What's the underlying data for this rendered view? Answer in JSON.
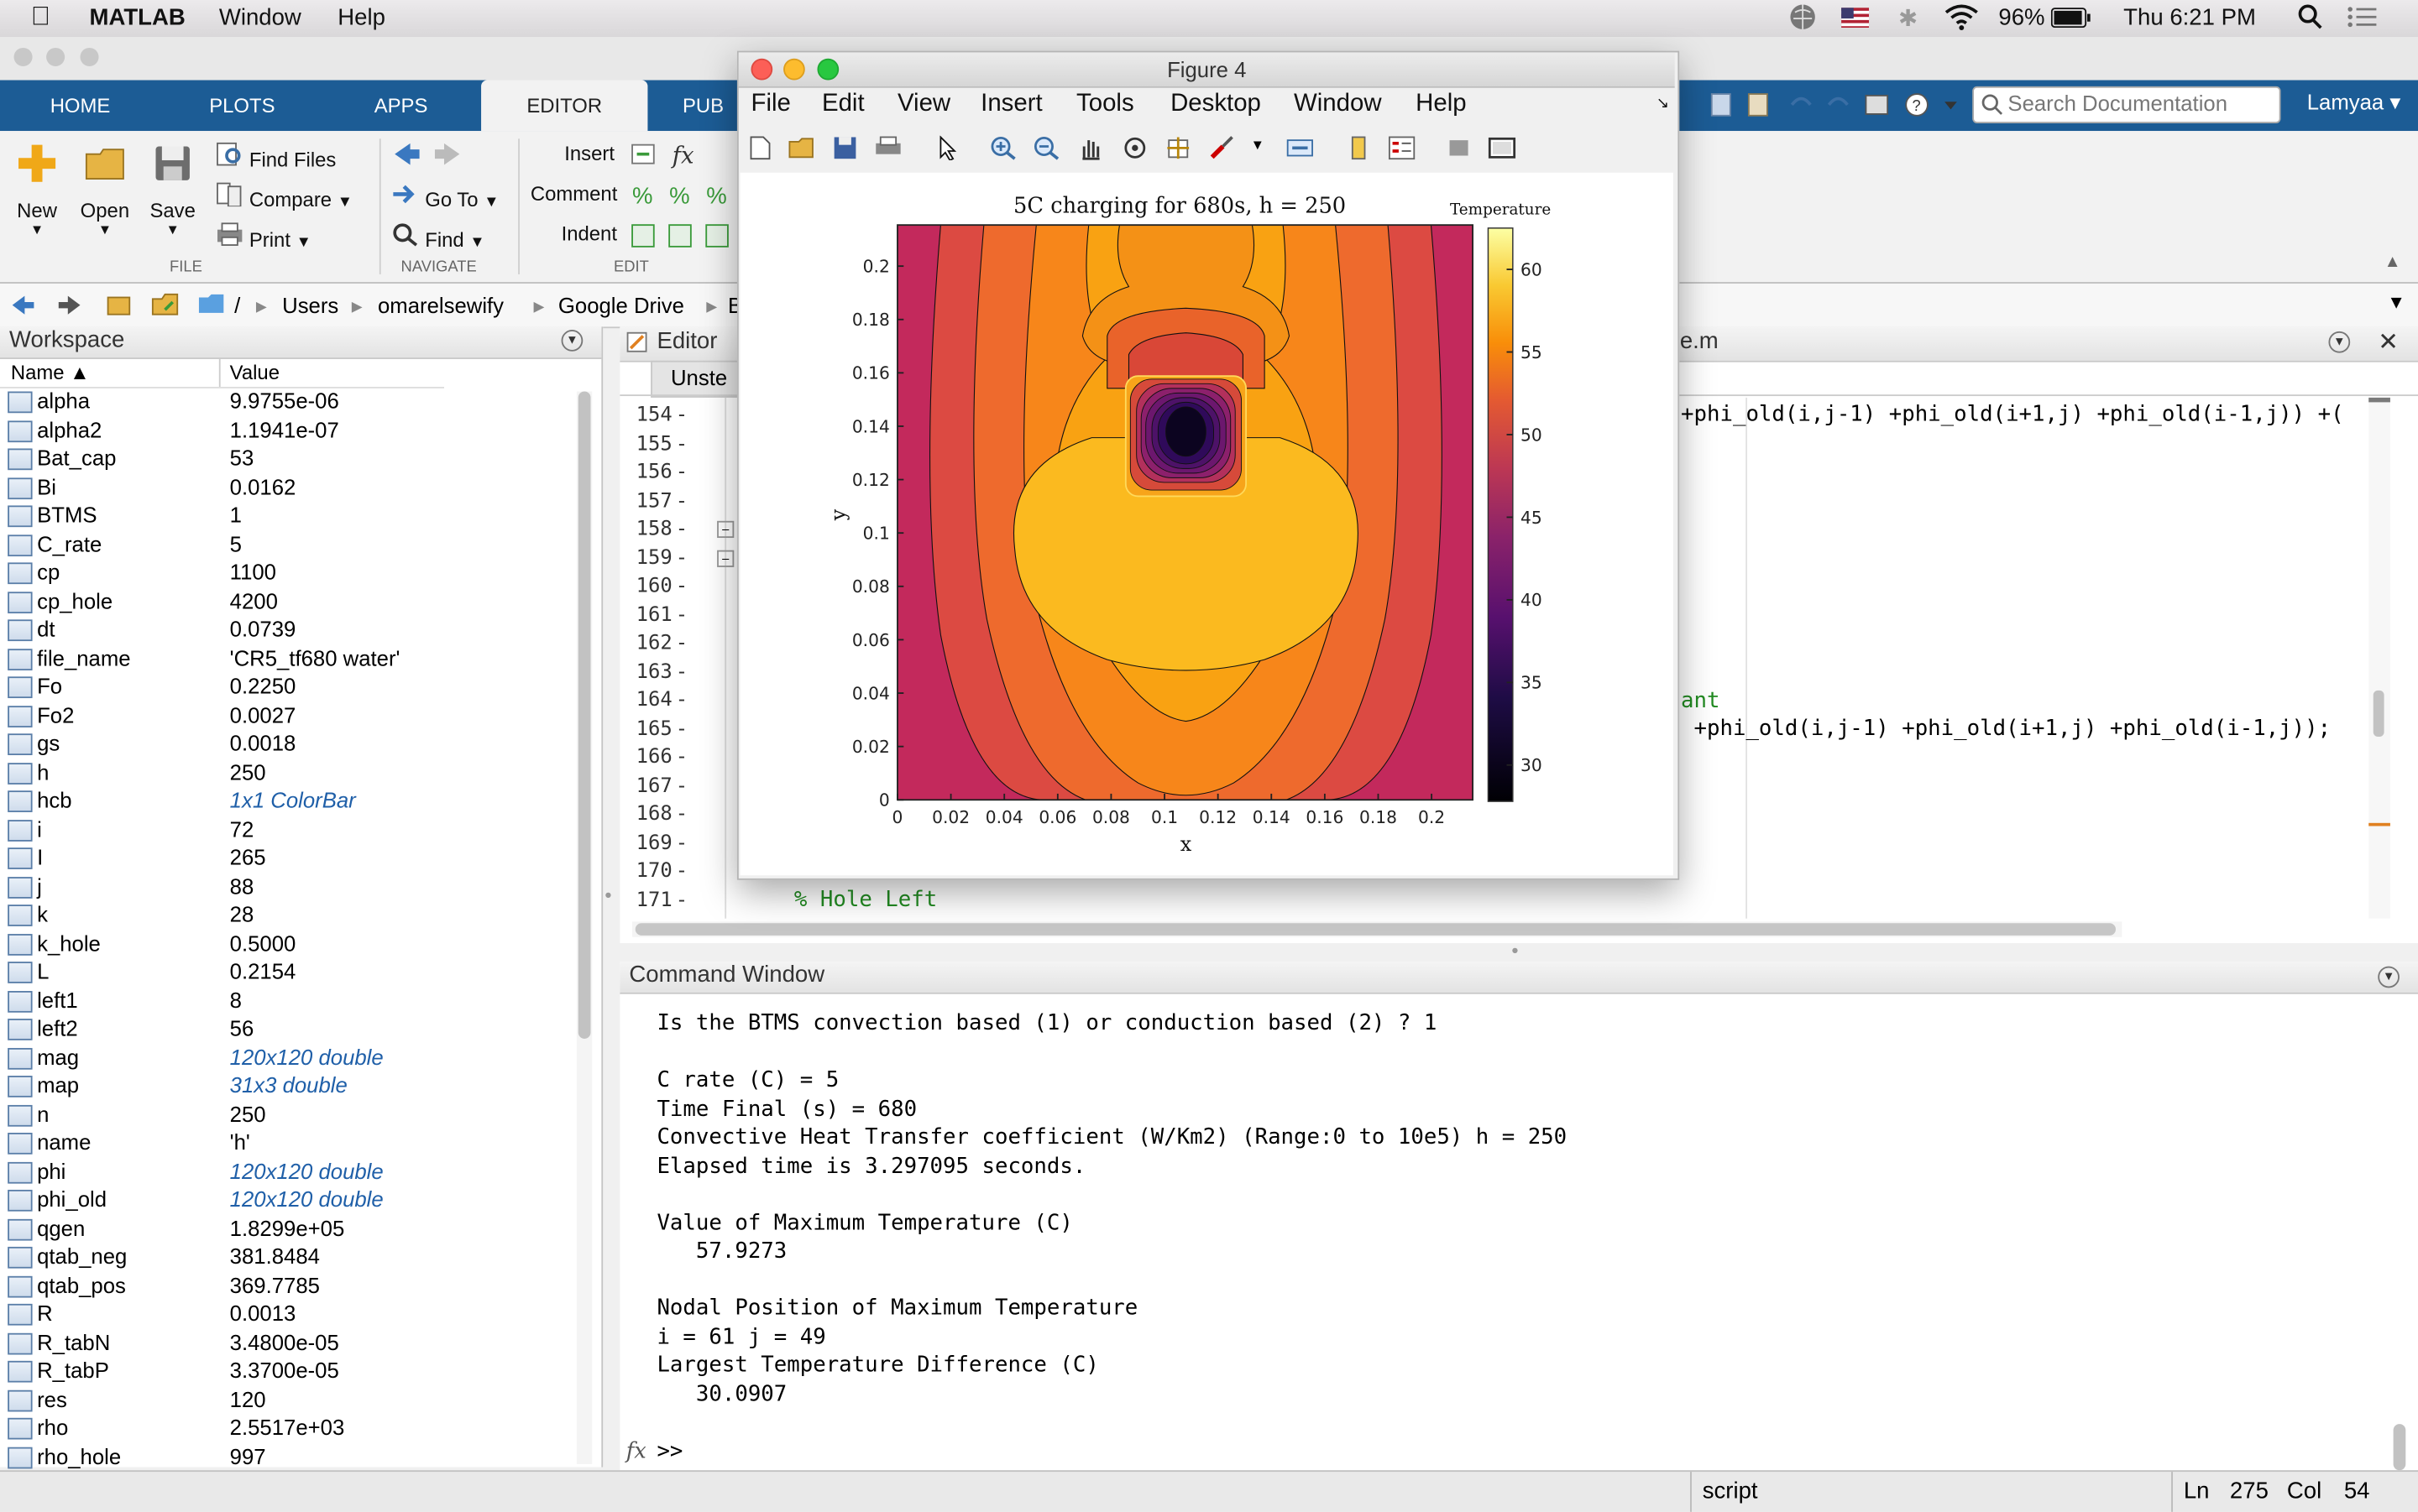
{
  "menubar": {
    "app": "MATLAB",
    "items": [
      "Window",
      "Help"
    ],
    "battery": "96%",
    "clock": "Thu 6:21 PM"
  },
  "ribbon": {
    "tabs": [
      "HOME",
      "PLOTS",
      "APPS",
      "EDITOR",
      "PUB"
    ],
    "active_tab": "EDITOR",
    "file": {
      "new": "New",
      "open": "Open",
      "save": "Save",
      "find_files": "Find Files",
      "compare": "Compare",
      "print": "Print",
      "section": "FILE"
    },
    "navigate": {
      "go_to": "Go To",
      "find": "Find",
      "section": "NAVIGATE"
    },
    "edit": {
      "insert": "Insert",
      "comment": "Comment",
      "indent": "Indent",
      "section": "EDIT"
    },
    "search_placeholder": "Search Documentation",
    "user": "Lamyaa"
  },
  "path": {
    "root": "/",
    "segments": [
      "Users",
      "omarelsewify",
      "Google Drive",
      "B"
    ]
  },
  "workspace": {
    "title": "Workspace",
    "col_name": "Name ▲",
    "col_value": "Value",
    "rows": [
      {
        "name": "alpha",
        "value": "9.9755e-06"
      },
      {
        "name": "alpha2",
        "value": "1.1941e-07"
      },
      {
        "name": "Bat_cap",
        "value": "53"
      },
      {
        "name": "Bi",
        "value": "0.0162"
      },
      {
        "name": "BTMS",
        "value": "1"
      },
      {
        "name": "C_rate",
        "value": "5"
      },
      {
        "name": "cp",
        "value": "1100"
      },
      {
        "name": "cp_hole",
        "value": "4200"
      },
      {
        "name": "dt",
        "value": "0.0739"
      },
      {
        "name": "file_name",
        "value": "'CR5_tf680 water'"
      },
      {
        "name": "Fo",
        "value": "0.2250"
      },
      {
        "name": "Fo2",
        "value": "0.0027"
      },
      {
        "name": "gs",
        "value": "0.0018"
      },
      {
        "name": "h",
        "value": "250"
      },
      {
        "name": "hcb",
        "value": "1x1 ColorBar"
      },
      {
        "name": "i",
        "value": "72"
      },
      {
        "name": "I",
        "value": "265"
      },
      {
        "name": "j",
        "value": "88"
      },
      {
        "name": "k",
        "value": "28"
      },
      {
        "name": "k_hole",
        "value": "0.5000"
      },
      {
        "name": "L",
        "value": "0.2154"
      },
      {
        "name": "left1",
        "value": "8"
      },
      {
        "name": "left2",
        "value": "56"
      },
      {
        "name": "mag",
        "value": "120x120 double"
      },
      {
        "name": "map",
        "value": "31x3 double"
      },
      {
        "name": "n",
        "value": "250"
      },
      {
        "name": "name",
        "value": "'h'"
      },
      {
        "name": "phi",
        "value": "120x120 double"
      },
      {
        "name": "phi_old",
        "value": "120x120 double"
      },
      {
        "name": "qgen",
        "value": "1.8299e+05"
      },
      {
        "name": "qtab_neg",
        "value": "381.8484"
      },
      {
        "name": "qtab_pos",
        "value": "369.7785"
      },
      {
        "name": "R",
        "value": "0.0013"
      },
      {
        "name": "R_tabN",
        "value": "3.4800e-05"
      },
      {
        "name": "R_tabP",
        "value": "3.3700e-05"
      },
      {
        "name": "res",
        "value": "120"
      },
      {
        "name": "rho",
        "value": "2.5517e+03"
      },
      {
        "name": "rho_hole",
        "value": "997"
      }
    ]
  },
  "editor": {
    "title": "Editor",
    "tab": "Unste",
    "file_tab": "le.m",
    "line_numbers": [
      "154",
      "155",
      "156",
      "157",
      "158",
      "159",
      "160",
      "161",
      "162",
      "163",
      "164",
      "165",
      "166",
      "167",
      "168",
      "169",
      "170",
      "171"
    ],
    "code_154": "+phi_old(i,j-1) +phi_old(i+1,j) +phi_old(i-1,j)) +(",
    "code_164": "ant",
    "code_165": " +phi_old(i,j-1) +phi_old(i+1,j) +phi_old(i-1,j));",
    "code_171": "% Hole Left"
  },
  "command_window": {
    "title": "Command Window",
    "lines": [
      "Is the BTMS convection based (1) or conduction based (2) ? 1",
      "",
      "C rate (C) = 5",
      "Time Final (s) = 680",
      "Convective Heat Transfer coefficient (W/Km2) (Range:0 to 10e5) h = 250",
      "Elapsed time is 3.297095 seconds.",
      "",
      "Value of Maximum Temperature (C)",
      "   57.9273",
      "",
      "Nodal Position of Maximum Temperature",
      "i = 61 j = 49",
      "Largest Temperature Difference (C)",
      "   30.0907"
    ],
    "prompt": ">>"
  },
  "status": {
    "mode": "script",
    "ln_label": "Ln",
    "ln": "275",
    "col_label": "Col",
    "col": "54"
  },
  "figure": {
    "title": "Figure 4",
    "menus": [
      "File",
      "Edit",
      "View",
      "Insert",
      "Tools",
      "Desktop",
      "Window",
      "Help"
    ]
  },
  "chart_data": {
    "type": "heatmap",
    "title": "5C charging for 680s, h = 250",
    "xlabel": "x",
    "ylabel": "y",
    "xlim": [
      0,
      0.2154
    ],
    "ylim": [
      0,
      0.2154
    ],
    "xticks": [
      0,
      0.02,
      0.04,
      0.06,
      0.08,
      0.1,
      0.12,
      0.14,
      0.16,
      0.18,
      0.2
    ],
    "yticks": [
      0,
      0.02,
      0.04,
      0.06,
      0.08,
      0.1,
      0.12,
      0.14,
      0.16,
      0.18,
      0.2
    ],
    "colorbar_label": "Temperature",
    "colorbar_ticks": [
      30,
      35,
      40,
      45,
      50,
      55,
      60
    ],
    "clim": [
      27.8,
      62.5
    ],
    "max_temperature": 57.9273,
    "hole_region": {
      "x": [
        0.085,
        0.127
      ],
      "y": [
        0.115,
        0.158
      ]
    }
  }
}
